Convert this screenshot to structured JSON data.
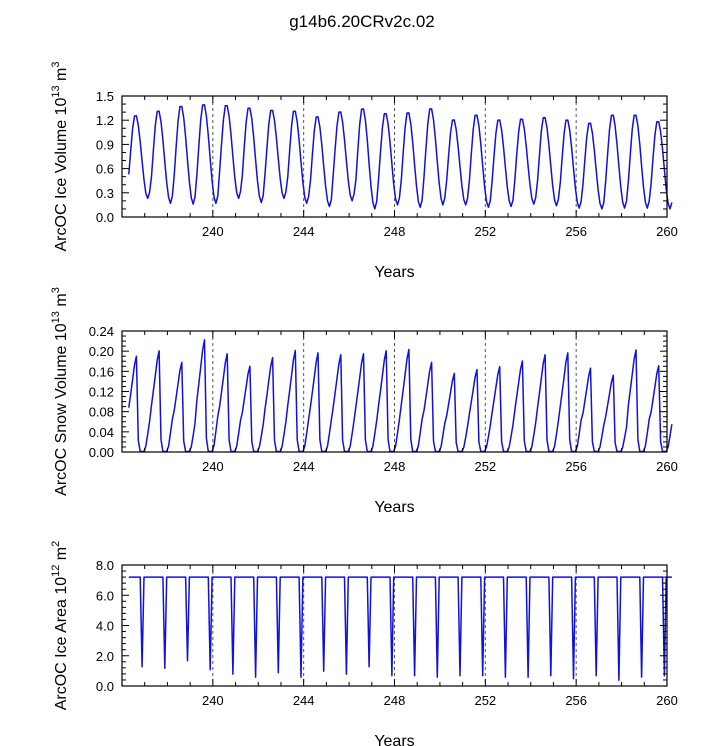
{
  "figure_title": "g14b6.20CRv2c.02",
  "colors": {
    "series": "#1010e0",
    "axes": "#000000",
    "refline": "#555555"
  },
  "chart_data": [
    {
      "type": "line",
      "title": "g14b6.20CRv2c.02",
      "ylabel_main": "ArcOC Ice Volume",
      "ylabel_exp": "10",
      "ylabel_sup1": "13",
      "ylabel_unit": "m",
      "ylabel_sup2": "3",
      "xlabel": "Years",
      "xlim": [
        236.0,
        260.0
      ],
      "ylim": [
        0.0,
        1.5
      ],
      "xticks": [
        240,
        244,
        248,
        252,
        256,
        260
      ],
      "xtick_labels": [
        "240",
        "244",
        "248",
        "252",
        "256",
        "260"
      ],
      "yticks": [
        0.0,
        0.3,
        0.6,
        0.9,
        1.2,
        1.5
      ],
      "ytick_labels": [
        "0.0",
        "0.3",
        "0.6",
        "0.9",
        "1.2",
        "1.5"
      ],
      "yminor": 0.1,
      "ref_lines_x": [
        240,
        244,
        248,
        252,
        256
      ],
      "series": [
        {
          "name": "ArcOC Ice Volume",
          "max_values": [
            1.27,
            1.33,
            1.39,
            1.41,
            1.4,
            1.37,
            1.34,
            1.33,
            1.26,
            1.32,
            1.36,
            1.3,
            1.31,
            1.36,
            1.22,
            1.28,
            1.22,
            1.23,
            1.25,
            1.22,
            1.18,
            1.28,
            1.28,
            1.2
          ],
          "min_values": [
            0.23,
            0.17,
            0.16,
            0.17,
            0.23,
            0.18,
            0.23,
            0.17,
            0.13,
            0.2,
            0.1,
            0.15,
            0.12,
            0.15,
            0.15,
            0.12,
            0.13,
            0.16,
            0.14,
            0.11,
            0.1,
            0.11,
            0.11,
            0.1
          ]
        }
      ]
    },
    {
      "type": "line",
      "ylabel_main": "ArcOC Snow Volume",
      "ylabel_exp": "10",
      "ylabel_sup1": "13",
      "ylabel_unit": "m",
      "ylabel_sup2": "3",
      "xlabel": "Years",
      "xlim": [
        236.0,
        260.0
      ],
      "ylim": [
        0.0,
        0.24
      ],
      "xticks": [
        240,
        244,
        248,
        252,
        256,
        260
      ],
      "xtick_labels": [
        "240",
        "244",
        "248",
        "252",
        "256",
        "260"
      ],
      "yticks": [
        0.0,
        0.04,
        0.08,
        0.12,
        0.16,
        0.2,
        0.24
      ],
      "ytick_labels": [
        "0.00",
        "0.04",
        "0.08",
        "0.12",
        "0.16",
        "0.20",
        "0.24"
      ],
      "yminor": 0.01,
      "ref_lines_x": [
        240,
        244,
        248,
        252,
        256
      ],
      "series": [
        {
          "name": "ArcOC Snow Volume",
          "max_values": [
            0.2,
            0.211,
            0.187,
            0.234,
            0.205,
            0.179,
            0.197,
            0.212,
            0.207,
            0.203,
            0.205,
            0.211,
            0.214,
            0.187,
            0.164,
            0.172,
            0.178,
            0.19,
            0.203,
            0.207,
            0.175,
            0.16,
            0.213,
            0.18
          ],
          "min_values": [
            0.001,
            0.001,
            0.001,
            0.001,
            0.001,
            0.001,
            0.001,
            0.001,
            0.001,
            0.001,
            0.001,
            0.001,
            0.001,
            0.001,
            0.001,
            0.001,
            0.001,
            0.001,
            0.001,
            0.001,
            0.001,
            0.001,
            0.001,
            0.001
          ]
        }
      ]
    },
    {
      "type": "line",
      "ylabel_main": "ArcOC Ice Area",
      "ylabel_exp": "10",
      "ylabel_sup1": "12",
      "ylabel_unit": "m",
      "ylabel_sup2": "2",
      "xlabel": "Years",
      "xlim": [
        236.0,
        260.0
      ],
      "ylim": [
        0.0,
        8.0
      ],
      "xticks": [
        240,
        244,
        248,
        252,
        256,
        260
      ],
      "xtick_labels": [
        "240",
        "244",
        "248",
        "252",
        "256",
        "260"
      ],
      "yticks": [
        0.0,
        2.0,
        4.0,
        6.0,
        8.0
      ],
      "ytick_labels": [
        "0.0",
        "2.0",
        "4.0",
        "6.0",
        "8.0"
      ],
      "yminor": 0.4,
      "ref_lines_x": [
        240,
        244,
        248,
        252,
        256
      ],
      "series": [
        {
          "name": "ArcOC Ice Area",
          "max_values": [
            7.2,
            7.2,
            7.2,
            7.2,
            7.2,
            7.2,
            7.2,
            7.2,
            7.2,
            7.2,
            7.2,
            7.2,
            7.2,
            7.2,
            7.2,
            7.2,
            7.2,
            7.2,
            7.2,
            7.2,
            7.2,
            7.2,
            7.2,
            7.2
          ],
          "min_values": [
            1.2,
            1.1,
            1.6,
            1.0,
            0.7,
            0.5,
            0.8,
            0.5,
            0.9,
            0.7,
            1.2,
            0.6,
            0.6,
            0.5,
            0.6,
            0.6,
            0.5,
            0.5,
            0.6,
            0.4,
            0.6,
            0.3,
            0.5,
            0.6
          ]
        }
      ]
    }
  ]
}
